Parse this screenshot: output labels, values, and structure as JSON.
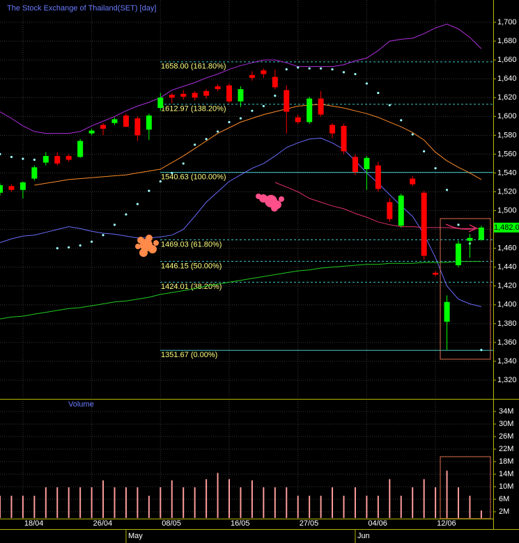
{
  "chart_data": {
    "type": "candlestick",
    "title": "The Stock Exchange of Thailand(SET) [day]",
    "categories": [
      null,
      null,
      "18/04",
      null,
      null,
      null,
      null,
      null,
      "26/04",
      null,
      null,
      null,
      null,
      null,
      "08/05",
      null,
      null,
      null,
      null,
      null,
      "16/05",
      null,
      null,
      null,
      null,
      null,
      "27/05",
      null,
      null,
      null,
      null,
      null,
      "04/06",
      null,
      null,
      null,
      null,
      null,
      "12/06",
      null,
      null,
      null,
      null
    ],
    "months": [
      null,
      null,
      null,
      null,
      null,
      null,
      null,
      null,
      null,
      null,
      null,
      "May",
      null,
      null,
      null,
      null,
      null,
      null,
      null,
      null,
      null,
      null,
      null,
      null,
      null,
      null,
      null,
      null,
      null,
      null,
      null,
      "Jun",
      null,
      null,
      null,
      null,
      null,
      null,
      null,
      null,
      null,
      null,
      null
    ],
    "open": [
      1519,
      1526,
      1522,
      1534,
      1551,
      1558,
      1558,
      1557,
      1582,
      1591,
      1593,
      1601,
      1598,
      1586,
      1609,
      1623,
      1624,
      1625,
      1627,
      1632,
      1633,
      1616,
      1644,
      1649,
      1642,
      1628,
      1599,
      1594,
      1619,
      1591,
      1590,
      1557,
      1544,
      1548,
      1509,
      1484,
      1534,
      1519,
      1434,
      1382,
      1442,
      1468,
      1469
    ],
    "high": [
      1529,
      1528,
      1531,
      1548,
      1562,
      1562,
      1560,
      1576,
      1587,
      1593,
      1599,
      1603,
      1600,
      1603,
      1625,
      1625,
      1628,
      1627,
      1629,
      1634,
      1635,
      1632,
      1648,
      1651,
      1650,
      1633,
      1602,
      1621,
      1627,
      1593,
      1592,
      1560,
      1558,
      1552,
      1513,
      1518,
      1537,
      1521,
      1436,
      1410,
      1468,
      1475,
      1484
    ],
    "low": [
      1516,
      1520,
      1513,
      1532,
      1548,
      1548,
      1552,
      1556,
      1580,
      1580,
      1591,
      1589,
      1574,
      1575,
      1606,
      1614,
      1618,
      1617,
      1619,
      1627,
      1614,
      1610,
      1638,
      1641,
      1629,
      1582,
      1592,
      1592,
      1600,
      1577,
      1560,
      1538,
      1522,
      1520,
      1488,
      1482,
      1526,
      1448,
      1430,
      1352,
      1440,
      1450,
      1468
    ],
    "close": [
      1527,
      1522,
      1530,
      1546,
      1558,
      1550,
      1554,
      1574,
      1585,
      1587,
      1597,
      1589,
      1580,
      1601,
      1620,
      1620,
      1621,
      1620,
      1622,
      1629,
      1616,
      1629,
      1641,
      1645,
      1631,
      1605,
      1594,
      1619,
      1602,
      1582,
      1563,
      1541,
      1556,
      1523,
      1491,
      1516,
      1528,
      1452,
      1432,
      1403,
      1465,
      1471,
      1482
    ],
    "up_color": "#00ff00",
    "down_color": "#ff0000",
    "ylim": [
      1300.8,
      1722.2
    ],
    "yticks": [
      {
        "value": 1320,
        "label": "1,320"
      },
      {
        "value": 1340,
        "label": "1,340"
      },
      {
        "value": 1360,
        "label": "1,360"
      },
      {
        "value": 1380,
        "label": "1,380"
      },
      {
        "value": 1400,
        "label": "1,400"
      },
      {
        "value": 1420,
        "label": "1,420"
      },
      {
        "value": 1440,
        "label": "1,440"
      },
      {
        "value": 1460,
        "label": "1,460"
      },
      {
        "value": 1480,
        "label": "1,480"
      },
      {
        "value": 1500,
        "label": "1,500"
      },
      {
        "value": 1520,
        "label": "1,520"
      },
      {
        "value": 1540,
        "label": "1,540"
      },
      {
        "value": 1560,
        "label": "1,560"
      },
      {
        "value": 1580,
        "label": "1,580"
      },
      {
        "value": 1600,
        "label": "1,600"
      },
      {
        "value": 1620,
        "label": "1,620"
      },
      {
        "value": 1640,
        "label": "1,640"
      },
      {
        "value": 1660,
        "label": "1,660"
      },
      {
        "value": 1680,
        "label": "1,680"
      },
      {
        "value": 1700,
        "label": "1,700"
      }
    ],
    "grid": true,
    "series": [
      {
        "style": "line",
        "color": "#b030e0",
        "values": [
          1605,
          1598,
          1590,
          1584,
          1582,
          1582,
          1582,
          1584,
          1590,
          1595,
          1600,
          1606,
          1611,
          1615,
          1620,
          1628,
          1632,
          1636,
          1641,
          1645,
          1650,
          1654,
          1657,
          1660,
          1660,
          1657,
          1653,
          1653,
          1653,
          1653,
          1655,
          1659,
          1662,
          1670,
          1680,
          1682,
          1683,
          1688,
          1694,
          1698,
          1693,
          1684,
          1672
        ]
      },
      {
        "style": "line",
        "color": "#ff8c2a",
        "values": [
          null,
          null,
          null,
          1527,
          1529,
          1531,
          1533,
          1534,
          1535,
          1536,
          1537,
          1538,
          1540,
          1542,
          1544,
          1551,
          1558,
          1566,
          1574,
          1582,
          1588,
          1594,
          1598,
          1602,
          1605,
          1608,
          1611,
          1612,
          1613,
          1611,
          1609,
          1606,
          1603,
          1599,
          1594,
          1589,
          1583,
          1575,
          1562,
          1553,
          1546,
          1540,
          1533
        ]
      },
      {
        "style": "line",
        "color": "#6b6bff",
        "values": [
          1466,
          1470,
          1473,
          1474,
          1477,
          1480,
          1483,
          1481,
          1478,
          1476,
          1475,
          1473,
          1471,
          1471,
          1472,
          1474,
          1480,
          1494,
          1509,
          1520,
          1531,
          1538,
          1545,
          1550,
          1558,
          1567,
          1572,
          1576,
          1577,
          1572,
          1565,
          1553,
          1540,
          1529,
          1517,
          1505,
          1494,
          1475,
          1450,
          1420,
          1406,
          1401,
          1398
        ]
      },
      {
        "style": "line",
        "color": "#22cc22",
        "values": [
          1385,
          1387,
          1388,
          1390,
          1392,
          1394,
          1396,
          1397,
          1399,
          1401,
          1403,
          1404,
          1406,
          1408,
          1411,
          1413,
          1415,
          1417,
          1420,
          1422,
          1424,
          1426,
          1428,
          1430,
          1432,
          1434,
          1436,
          1437,
          1439,
          1440,
          1441,
          1442,
          1443,
          1443,
          1444,
          1444,
          1444,
          1445,
          1445,
          1445,
          1446,
          1446,
          1446
        ]
      },
      {
        "style": "line",
        "color": "#e0306a",
        "values": [
          null,
          null,
          null,
          null,
          null,
          null,
          null,
          null,
          null,
          null,
          null,
          null,
          null,
          null,
          null,
          null,
          null,
          null,
          null,
          null,
          null,
          null,
          null,
          null,
          1530,
          1525,
          1520,
          1513,
          1509,
          1505,
          1502,
          1497,
          1493,
          1488,
          1485,
          1483,
          1483,
          1482,
          1482,
          1482,
          1481,
          1481,
          1481
        ]
      },
      {
        "style": "dots",
        "color": "#a0ffff",
        "values": [
          1560,
          1557,
          1555,
          1554,
          1553,
          1460,
          1461,
          1463,
          1467,
          1474,
          1485,
          1496,
          1507,
          1521,
          1531,
          1540,
          1550,
          1570,
          1576,
          1584,
          1594,
          1598,
          1606,
          1611,
          1622,
          1650,
          1652,
          1651,
          1651,
          1650,
          1647,
          1645,
          1635,
          1625,
          1612,
          1596,
          1581,
          1563,
          1545,
          1522,
          1485,
          1465,
          1352
        ]
      }
    ],
    "fib_levels": [
      {
        "value": 1658.0,
        "label": "1658.00 (161.80%)",
        "dashed": true
      },
      {
        "value": 1612.97,
        "label": "1612.97 (138.20%)",
        "dashed": true
      },
      {
        "value": 1540.63,
        "label": "1540.63 (100.00%)",
        "dashed": false
      },
      {
        "value": 1469.03,
        "label": "1469.03 (61.80%)",
        "dashed": true
      },
      {
        "value": 1446.15,
        "label": "1446.15 (50.00%)",
        "dashed": true
      },
      {
        "value": 1424.01,
        "label": "1424.01 (38.20%)",
        "dashed": true
      },
      {
        "value": 1351.67,
        "label": "1351.67 (0.00%)",
        "dashed": false
      }
    ],
    "last_price": {
      "value": 1482,
      "label": "1,482.0"
    },
    "volume": {
      "label": "Volume",
      "color": "#ff9c9c",
      "values": [
        7.1,
        7.1,
        7.1,
        7.1,
        9.8,
        9.8,
        9.8,
        9.8,
        9.8,
        12,
        9.8,
        9.8,
        9.8,
        7.1,
        9.8,
        12,
        9.8,
        9.8,
        12.4,
        14.4,
        12.4,
        9.8,
        12,
        9.8,
        9.8,
        9.8,
        7.1,
        7.1,
        7.1,
        9.8,
        7.1,
        9.8,
        7.1,
        7.1,
        12.4,
        7.1,
        9.8,
        12.4,
        9.8,
        15.1,
        9.8,
        7.1,
        2.4
      ],
      "ylim": [
        -0.2,
        37.8
      ],
      "yticks": [
        {
          "value": 2,
          "label": "2M"
        },
        {
          "value": 6,
          "label": "6M"
        },
        {
          "value": 10,
          "label": "10M"
        },
        {
          "value": 14,
          "label": "14M"
        },
        {
          "value": 18,
          "label": "18M"
        },
        {
          "value": 22,
          "label": "22M"
        },
        {
          "value": 26,
          "label": "26M"
        },
        {
          "value": 30,
          "label": "30M"
        },
        {
          "value": 34,
          "label": "34M"
        }
      ]
    }
  }
}
